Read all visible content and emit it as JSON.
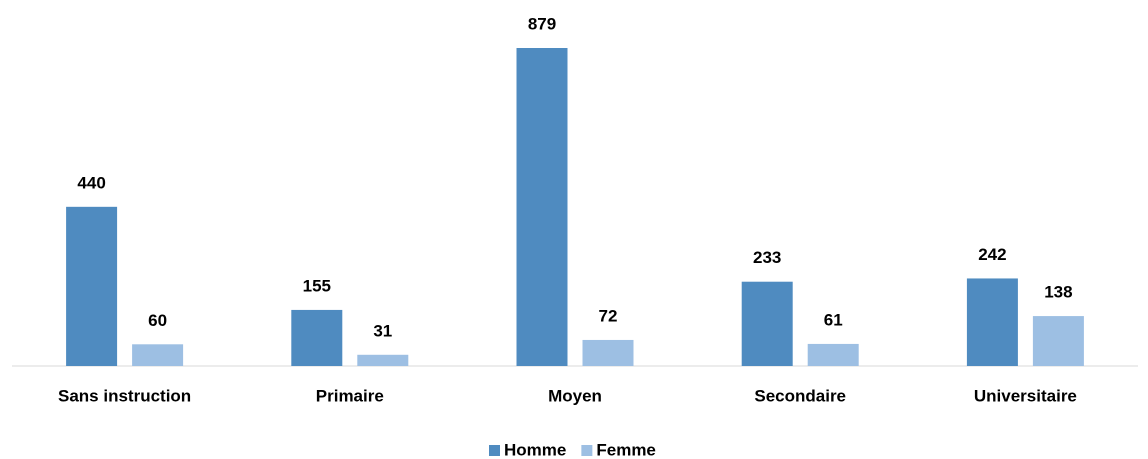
{
  "chart_data": {
    "type": "bar",
    "categories": [
      "Sans instruction",
      "Primaire",
      "Moyen",
      "Secondaire",
      "Universitaire"
    ],
    "series": [
      {
        "name": "Homme",
        "color": "#4f8bc0",
        "values": [
          440,
          155,
          879,
          233,
          242
        ]
      },
      {
        "name": "Femme",
        "color": "#9dbfe3",
        "values": [
          60,
          31,
          72,
          61,
          138
        ]
      }
    ],
    "legend": "bottom"
  }
}
